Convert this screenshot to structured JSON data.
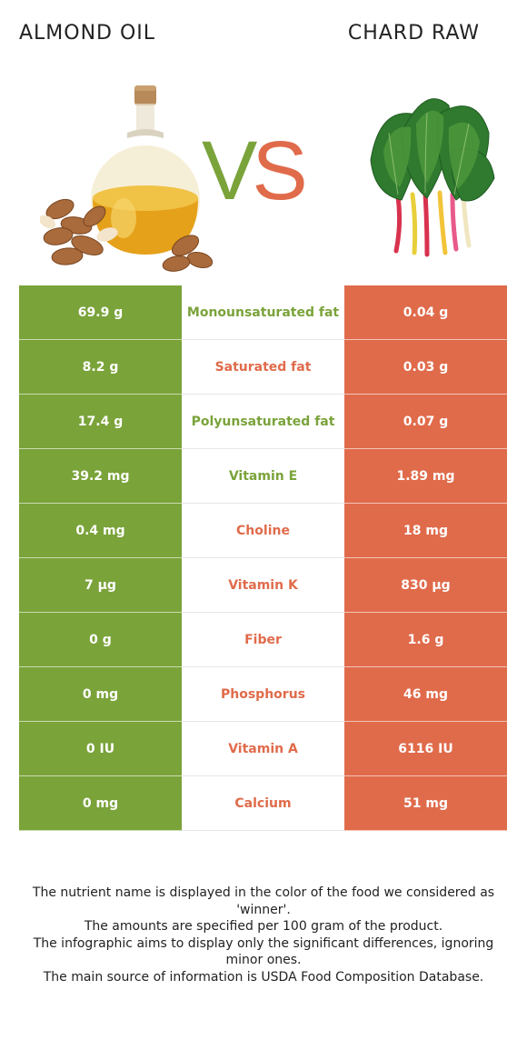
{
  "foods": {
    "left": "ALMOND OIL",
    "right": "CHARD RAW",
    "vs_v": "V",
    "vs_s": "S"
  },
  "colors": {
    "left_food": "#7aa33a",
    "right_food": "#e06b4b"
  },
  "rows": [
    {
      "left": "69.9 g",
      "name": "Monounsaturated fat",
      "right": "0.04 g",
      "winner": "left"
    },
    {
      "left": "8.2 g",
      "name": "Saturated fat",
      "right": "0.03 g",
      "winner": "right"
    },
    {
      "left": "17.4 g",
      "name": "Polyunsaturated fat",
      "right": "0.07 g",
      "winner": "left"
    },
    {
      "left": "39.2 mg",
      "name": "Vitamin E",
      "right": "1.89 mg",
      "winner": "left"
    },
    {
      "left": "0.4 mg",
      "name": "Choline",
      "right": "18 mg",
      "winner": "right"
    },
    {
      "left": "7 µg",
      "name": "Vitamin K",
      "right": "830 µg",
      "winner": "right"
    },
    {
      "left": "0 g",
      "name": "Fiber",
      "right": "1.6 g",
      "winner": "right"
    },
    {
      "left": "0 mg",
      "name": "Phosphorus",
      "right": "46 mg",
      "winner": "right"
    },
    {
      "left": "0 IU",
      "name": "Vitamin A",
      "right": "6116 IU",
      "winner": "right"
    },
    {
      "left": "0 mg",
      "name": "Calcium",
      "right": "51 mg",
      "winner": "right"
    }
  ],
  "footer": {
    "line1": "The nutrient name is displayed in the color of the food we considered as 'winner'.",
    "line2": "The amounts are specified per 100 gram of the product.",
    "line3": "The infographic aims to display only the significant differences, ignoring minor ones.",
    "line4": "The main source of information is USDA Food Composition Database."
  }
}
